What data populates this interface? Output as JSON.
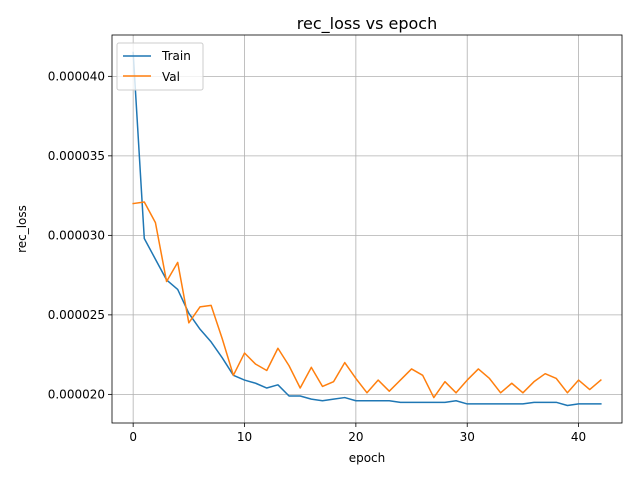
{
  "chart_data": {
    "type": "line",
    "title": "rec_loss vs epoch",
    "xlabel": "epoch",
    "ylabel": "rec_loss",
    "xlim": [
      -1.9,
      43.9
    ],
    "ylim": [
      1.82e-05,
      4.26e-05
    ],
    "xticks": [
      0,
      10,
      20,
      30,
      40
    ],
    "xtick_labels": [
      "0",
      "10",
      "20",
      "30",
      "40"
    ],
    "yticks": [
      2e-05,
      2.5e-05,
      3e-05,
      3.5e-05,
      4e-05
    ],
    "ytick_labels": [
      "0.000020",
      "0.000025",
      "0.000030",
      "0.000035",
      "0.000040"
    ],
    "grid": true,
    "legend_position": "top-left",
    "x": [
      0,
      1,
      2,
      3,
      4,
      5,
      6,
      7,
      8,
      9,
      10,
      11,
      12,
      13,
      14,
      15,
      16,
      17,
      18,
      19,
      20,
      21,
      22,
      23,
      24,
      25,
      26,
      27,
      28,
      29,
      30,
      31,
      32,
      33,
      34,
      35,
      36,
      37,
      38,
      39,
      40,
      41,
      42
    ],
    "series": [
      {
        "name": "Train",
        "color": "#1f77b4",
        "values": [
          4.15e-05,
          2.98e-05,
          2.85e-05,
          2.72e-05,
          2.66e-05,
          2.51e-05,
          2.41e-05,
          2.33e-05,
          2.23e-05,
          2.12e-05,
          2.09e-05,
          2.07e-05,
          2.04e-05,
          2.06e-05,
          1.99e-05,
          1.99e-05,
          1.97e-05,
          1.96e-05,
          1.97e-05,
          1.98e-05,
          1.96e-05,
          1.96e-05,
          1.96e-05,
          1.96e-05,
          1.95e-05,
          1.95e-05,
          1.95e-05,
          1.95e-05,
          1.95e-05,
          1.96e-05,
          1.94e-05,
          1.94e-05,
          1.94e-05,
          1.94e-05,
          1.94e-05,
          1.94e-05,
          1.95e-05,
          1.95e-05,
          1.95e-05,
          1.93e-05,
          1.94e-05,
          1.94e-05,
          1.94e-05
        ]
      },
      {
        "name": "Val",
        "color": "#ff7f0e",
        "values": [
          3.2e-05,
          3.21e-05,
          3.08e-05,
          2.71e-05,
          2.83e-05,
          2.45e-05,
          2.55e-05,
          2.56e-05,
          2.35e-05,
          2.12e-05,
          2.26e-05,
          2.19e-05,
          2.15e-05,
          2.29e-05,
          2.18e-05,
          2.04e-05,
          2.17e-05,
          2.05e-05,
          2.08e-05,
          2.2e-05,
          2.1e-05,
          2.01e-05,
          2.09e-05,
          2.02e-05,
          2.09e-05,
          2.16e-05,
          2.12e-05,
          1.98e-05,
          2.08e-05,
          2.01e-05,
          2.09e-05,
          2.16e-05,
          2.1e-05,
          2.01e-05,
          2.07e-05,
          2.01e-05,
          2.08e-05,
          2.13e-05,
          2.1e-05,
          2.01e-05,
          2.09e-05,
          2.03e-05,
          2.09e-05
        ]
      }
    ]
  }
}
